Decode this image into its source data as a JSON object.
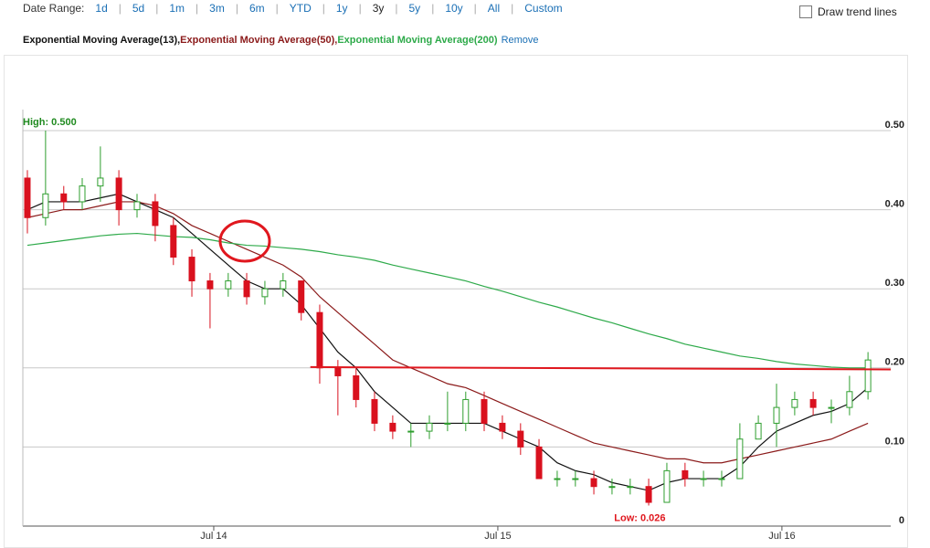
{
  "toolbar": {
    "label": "Date Range:",
    "ranges": [
      "1d",
      "5d",
      "1m",
      "3m",
      "6m",
      "YTD",
      "1y",
      "3y",
      "5y",
      "10y",
      "All",
      "Custom"
    ],
    "active": "3y",
    "range_separator": "|",
    "trend_toggle": "Draw trend lines",
    "remove": "Remove"
  },
  "chart_data": {
    "type": "candlestick",
    "x": [
      2013.844,
      2013.908,
      2013.972,
      2014.037,
      2014.101,
      2014.166,
      2014.23,
      2014.294,
      2014.358,
      2014.423,
      2014.487,
      2014.551,
      2014.616,
      2014.68,
      2014.744,
      2014.808,
      2014.873,
      2014.937,
      2015.001,
      2015.066,
      2015.13,
      2015.194,
      2015.259,
      2015.323,
      2015.387,
      2015.452,
      2015.516,
      2015.58,
      2015.645,
      2015.709,
      2015.773,
      2015.838,
      2015.902,
      2015.966,
      2016.031,
      2016.095,
      2016.159,
      2016.224,
      2016.288,
      2016.352,
      2016.417,
      2016.481,
      2016.545,
      2016.61,
      2016.674,
      2016.738,
      2016.803
    ],
    "open": [
      0.44,
      0.39,
      0.42,
      0.41,
      0.43,
      0.44,
      0.4,
      0.41,
      0.38,
      0.34,
      0.31,
      0.3,
      0.31,
      0.29,
      0.3,
      0.31,
      0.27,
      0.2,
      0.19,
      0.16,
      0.13,
      0.12,
      0.12,
      0.13,
      0.13,
      0.16,
      0.13,
      0.12,
      0.1,
      0.06,
      0.06,
      0.06,
      0.05,
      0.05,
      0.05,
      0.03,
      0.07,
      0.06,
      0.06,
      0.06,
      0.11,
      0.13,
      0.15,
      0.16,
      0.15,
      0.15,
      0.17
    ],
    "high": [
      0.45,
      0.5,
      0.43,
      0.44,
      0.48,
      0.45,
      0.42,
      0.42,
      0.39,
      0.35,
      0.32,
      0.32,
      0.32,
      0.31,
      0.32,
      0.31,
      0.28,
      0.21,
      0.2,
      0.17,
      0.14,
      0.13,
      0.14,
      0.17,
      0.17,
      0.17,
      0.14,
      0.13,
      0.11,
      0.07,
      0.07,
      0.07,
      0.06,
      0.06,
      0.06,
      0.08,
      0.08,
      0.07,
      0.07,
      0.13,
      0.14,
      0.18,
      0.17,
      0.17,
      0.16,
      0.19,
      0.22
    ],
    "low": [
      0.37,
      0.38,
      0.4,
      0.4,
      0.41,
      0.38,
      0.39,
      0.36,
      0.33,
      0.29,
      0.25,
      0.29,
      0.28,
      0.28,
      0.29,
      0.26,
      0.18,
      0.14,
      0.15,
      0.12,
      0.11,
      0.1,
      0.11,
      0.12,
      0.12,
      0.12,
      0.11,
      0.09,
      0.06,
      0.05,
      0.05,
      0.04,
      0.04,
      0.04,
      0.026,
      0.03,
      0.05,
      0.05,
      0.05,
      0.06,
      0.11,
      0.1,
      0.14,
      0.14,
      0.13,
      0.14,
      0.16
    ],
    "close": [
      0.39,
      0.42,
      0.41,
      0.43,
      0.44,
      0.4,
      0.41,
      0.38,
      0.34,
      0.31,
      0.3,
      0.31,
      0.29,
      0.3,
      0.31,
      0.27,
      0.2,
      0.19,
      0.16,
      0.13,
      0.12,
      0.12,
      0.13,
      0.13,
      0.16,
      0.13,
      0.12,
      0.1,
      0.06,
      0.06,
      0.06,
      0.05,
      0.05,
      0.05,
      0.03,
      0.07,
      0.06,
      0.06,
      0.06,
      0.11,
      0.13,
      0.15,
      0.16,
      0.15,
      0.15,
      0.17,
      0.21
    ],
    "up_color": "#2e9e2e",
    "down_color": "#d9111e",
    "series": [
      {
        "name": "Exponential Moving Average(13)",
        "color": "#111111",
        "values": [
          0.4,
          0.41,
          0.41,
          0.41,
          0.415,
          0.42,
          0.41,
          0.4,
          0.39,
          0.37,
          0.35,
          0.33,
          0.31,
          0.3,
          0.3,
          0.28,
          0.25,
          0.22,
          0.2,
          0.17,
          0.15,
          0.13,
          0.13,
          0.13,
          0.13,
          0.13,
          0.12,
          0.11,
          0.1,
          0.08,
          0.07,
          0.065,
          0.055,
          0.05,
          0.045,
          0.055,
          0.06,
          0.06,
          0.06,
          0.075,
          0.1,
          0.12,
          0.13,
          0.14,
          0.145,
          0.155,
          0.175
        ]
      },
      {
        "name": "Exponential Moving Average(50)",
        "color": "#8b1a1a",
        "values": [
          0.39,
          0.395,
          0.4,
          0.4,
          0.405,
          0.41,
          0.41,
          0.405,
          0.395,
          0.38,
          0.37,
          0.36,
          0.35,
          0.34,
          0.33,
          0.315,
          0.29,
          0.27,
          0.25,
          0.23,
          0.21,
          0.2,
          0.19,
          0.18,
          0.175,
          0.165,
          0.155,
          0.145,
          0.135,
          0.125,
          0.115,
          0.105,
          0.1,
          0.095,
          0.09,
          0.085,
          0.085,
          0.08,
          0.08,
          0.085,
          0.09,
          0.095,
          0.1,
          0.105,
          0.11,
          0.12,
          0.13
        ]
      },
      {
        "name": "Exponential Moving Average(200)",
        "color": "#2eaa4a",
        "values": [
          0.355,
          0.358,
          0.361,
          0.364,
          0.367,
          0.369,
          0.37,
          0.368,
          0.366,
          0.365,
          0.362,
          0.358,
          0.355,
          0.354,
          0.352,
          0.35,
          0.347,
          0.343,
          0.34,
          0.336,
          0.33,
          0.325,
          0.32,
          0.315,
          0.31,
          0.303,
          0.297,
          0.29,
          0.283,
          0.277,
          0.27,
          0.263,
          0.257,
          0.25,
          0.243,
          0.237,
          0.23,
          0.225,
          0.22,
          0.215,
          0.212,
          0.208,
          0.205,
          0.203,
          0.201,
          0.2,
          0.2
        ]
      }
    ],
    "legend_separator": ",",
    "trend_line": {
      "x": [
        2014.84,
        2016.883
      ],
      "values": [
        0.201,
        0.198
      ],
      "color": "#e0171e"
    },
    "annotations": [
      {
        "text": "High: 0.500",
        "x": 2013.828,
        "value": 0.5,
        "color": "#1f8a1f"
      },
      {
        "text": "Low: 0.026",
        "x": 2016.0,
        "value": 0.026,
        "color": "#e0171e"
      }
    ],
    "xlim": [
      2013.828,
      2016.883
    ],
    "xticks": [
      {
        "value": 2014.5,
        "label": "Jul 14"
      },
      {
        "value": 2015.5,
        "label": "Jul 15"
      },
      {
        "value": 2016.5,
        "label": "Jul 16"
      }
    ],
    "ylim": [
      0,
      0.5
    ],
    "yticks": [
      0,
      {
        "value": 0.1,
        "label": "0.10"
      },
      {
        "value": 0.2,
        "label": "0.20"
      },
      {
        "value": 0.3,
        "label": "0.30"
      },
      {
        "value": 0.4,
        "label": "0.40"
      },
      {
        "value": 0.5,
        "label": "0.50"
      }
    ],
    "grid": true
  }
}
